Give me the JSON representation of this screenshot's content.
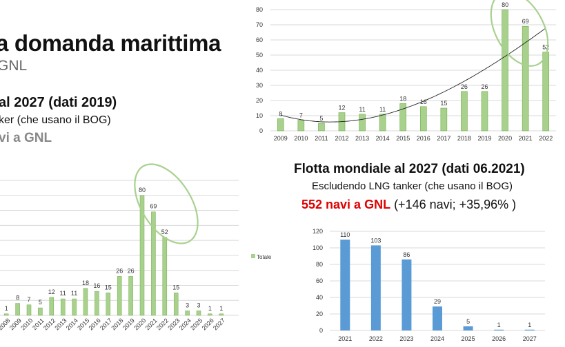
{
  "slide": {
    "title": "a domanda marittima",
    "subtitle": "GNL",
    "left_heading": "al 2027 (dati 2019)",
    "left_sub": "ker (che usano il BOG)",
    "left_count": "vi a GNL",
    "right_heading": "Flotta mondiale al 2027 (dati 06.2021)",
    "right_sub": "Escludendo LNG tanker (che usano il BOG)",
    "right_count": "552 navi a GNL",
    "right_delta": " (+146 navi; +35,96% )",
    "accent_color": "#e00000",
    "green_bar": "#a9d18e",
    "blue_bar": "#5b9bd5",
    "ellipse_color": "#a9d18e"
  },
  "chart_data": [
    {
      "type": "bar",
      "categories": [
        "2009",
        "2010",
        "2011",
        "2012",
        "2013",
        "2014",
        "2015",
        "2016",
        "2017",
        "2018",
        "2019",
        "2020",
        "2021",
        "2022"
      ],
      "values": [
        8,
        7,
        5,
        12,
        11,
        11,
        18,
        16,
        15,
        26,
        26,
        80,
        69,
        52
      ],
      "ylim": [
        0,
        80
      ],
      "yticks": [
        0,
        10,
        20,
        30,
        40,
        50,
        60,
        70,
        80
      ],
      "trendline": true,
      "grid": true
    },
    {
      "type": "bar",
      "categories": [
        "2008",
        "2009",
        "2010",
        "2011",
        "2012",
        "2013",
        "2014",
        "2015",
        "2016",
        "2017",
        "2018",
        "2019",
        "2020",
        "2021",
        "2022",
        "2023",
        "2024",
        "2025",
        "2026",
        "2027"
      ],
      "values": [
        1,
        8,
        7,
        5,
        12,
        11,
        11,
        18,
        16,
        15,
        26,
        26,
        80,
        69,
        52,
        15,
        3,
        3,
        1,
        1
      ],
      "legend": [
        "Totale"
      ],
      "legend_position": "right",
      "grid": true
    },
    {
      "type": "bar",
      "categories": [
        "2021",
        "2022",
        "2023",
        "2024",
        "2025",
        "2026",
        "2027"
      ],
      "values": [
        110,
        103,
        86,
        29,
        5,
        1,
        1
      ],
      "ylim": [
        0,
        120
      ],
      "yticks": [
        0,
        20,
        40,
        60,
        80,
        100,
        120
      ],
      "grid": true
    }
  ]
}
